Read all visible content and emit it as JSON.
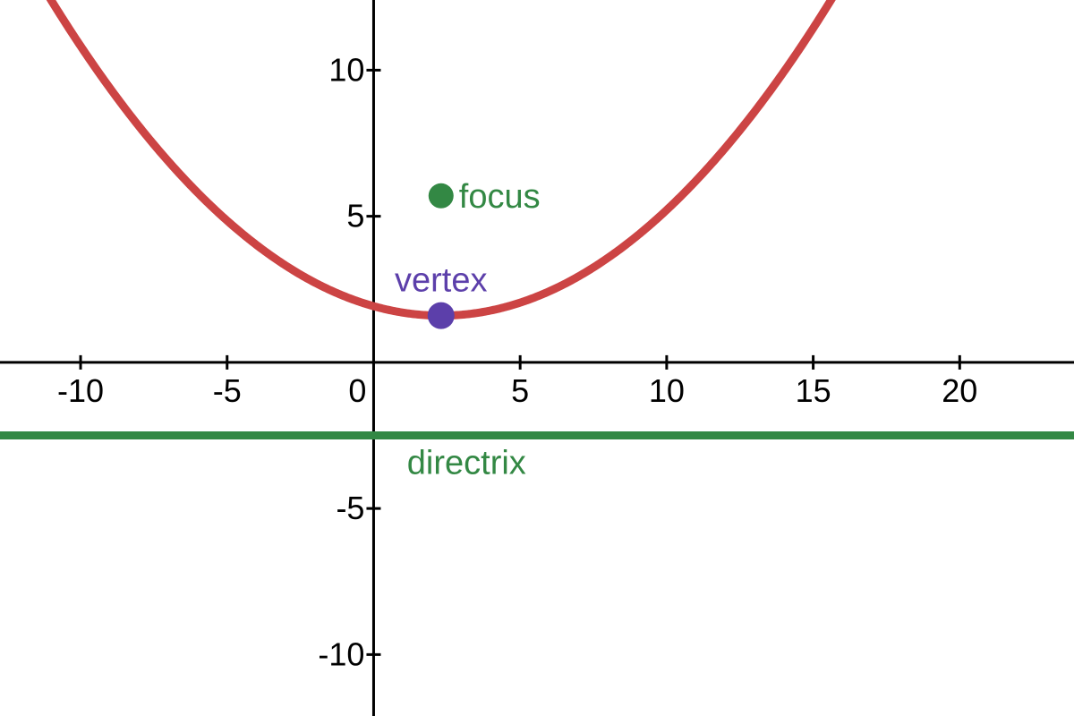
{
  "chart_data": {
    "type": "line",
    "xlim": [
      -12.75,
      23.9
    ],
    "ylim": [
      -12.1,
      12.4
    ],
    "x_ticks": [
      -10,
      -5,
      0,
      5,
      10,
      15,
      20
    ],
    "x_tick_labels": [
      "-10",
      "-5",
      "0",
      "5",
      "10",
      "15",
      "20"
    ],
    "y_ticks": [
      10,
      5,
      -5,
      -10
    ],
    "y_tick_labels": [
      "10",
      "5",
      "-5",
      "-10"
    ],
    "grid": false,
    "parabola": {
      "vertex": [
        2.3,
        1.6
      ],
      "focus": [
        2.3,
        5.7
      ],
      "directrix_y": -2.5,
      "equation_form": "y = (x - 2.3)^2 / (4 * 4.1) + 1.6",
      "sample_x": [
        -12,
        -10,
        -8,
        -6,
        -4,
        -2,
        0,
        2.3,
        5,
        8,
        10,
        12,
        14,
        16
      ],
      "sample_y": [
        14.07,
        10.82,
        8.07,
        5.8,
        4.02,
        2.73,
        1.92,
        1.6,
        2.04,
        3.58,
        5.22,
        7.34,
        9.95,
        13.04
      ],
      "color": "#cc4444"
    },
    "annotations": {
      "focus": {
        "text": "focus",
        "x": 2.3,
        "y": 5.7,
        "color": "#338844"
      },
      "vertex": {
        "text": "vertex",
        "x": 2.3,
        "y": 1.6,
        "color": "#5c3faa"
      },
      "directrix": {
        "text": "directrix",
        "y": -2.5,
        "color": "#338844"
      }
    },
    "colors": {
      "axis": "#000000",
      "parabola": "#cc4444",
      "focus": "#338844",
      "vertex": "#5c3faa",
      "directrix": "#338844"
    }
  }
}
